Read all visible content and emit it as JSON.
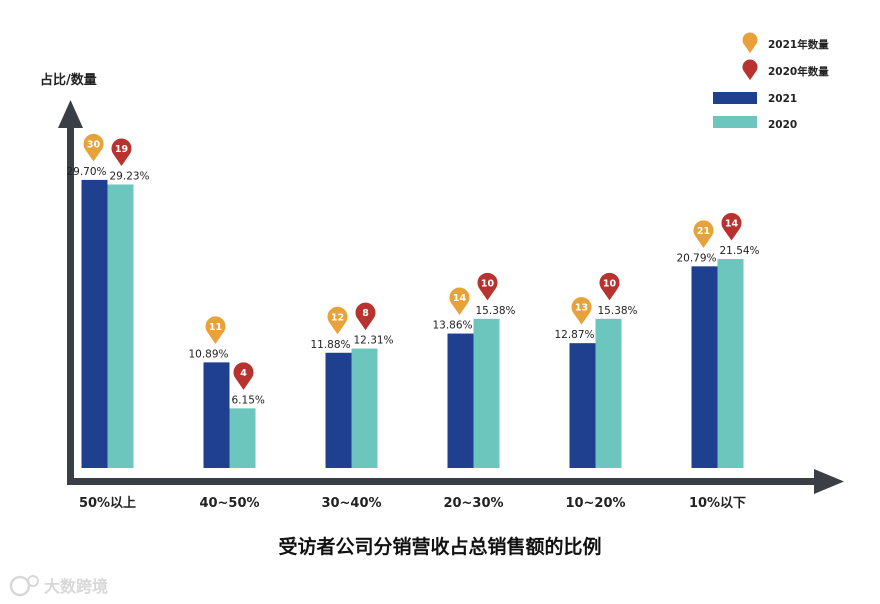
{
  "chart_data": {
    "type": "bar",
    "title": "受访者公司分销营收占总销售额的比例",
    "ylabel": "占比/数量",
    "categories": [
      "50%以上",
      "40~50%",
      "30~40%",
      "20~30%",
      "10~20%",
      "10%以下"
    ],
    "series": [
      {
        "name": "2021",
        "color": "#1f3f8f",
        "values": [
          29.7,
          10.89,
          11.88,
          13.86,
          12.87,
          20.79
        ],
        "labels": [
          "29.70%",
          "10.89%",
          "11.88%",
          "13.86%",
          "12.87%",
          "20.79%"
        ]
      },
      {
        "name": "2020",
        "color": "#6cc6bd",
        "values": [
          29.23,
          6.15,
          12.31,
          15.38,
          15.38,
          21.54
        ],
        "labels": [
          "29.23%",
          "6.15%",
          "12.31%",
          "15.38%",
          "15.38%",
          "21.54%"
        ]
      }
    ],
    "counts": [
      {
        "name": "2021年数量",
        "color": "#e8a23a",
        "values": [
          "30",
          "11",
          "12",
          "14",
          "13",
          "21"
        ]
      },
      {
        "name": "2020年数量",
        "color": "#b8332f",
        "values": [
          "19",
          "4",
          "8",
          "10",
          "10",
          "14"
        ]
      }
    ],
    "ylim": [
      0,
      32
    ],
    "grid": false,
    "legend": "top-right"
  },
  "watermark": "大数跨境",
  "axis_color": "#3a3f45"
}
